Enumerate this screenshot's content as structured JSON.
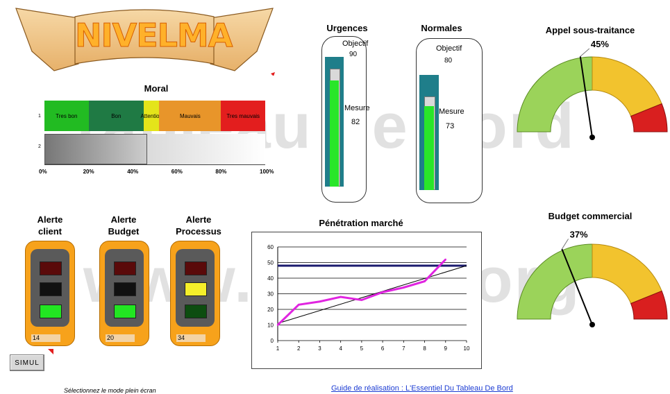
{
  "banner": {
    "text": "NIVELMA"
  },
  "watermarks": {
    "line1": "Tableau de bord",
    "line2": "www.piloter.org"
  },
  "moral": {
    "title": "Moral",
    "row_labels": [
      "1",
      "2"
    ],
    "segments": [
      {
        "label": "Tres bon",
        "start": 0,
        "end": 20,
        "color": "#22bb22"
      },
      {
        "label": "Bon",
        "start": 20,
        "end": 45,
        "color": "#1f7a44"
      },
      {
        "label": "Attention",
        "start": 45,
        "end": 52,
        "color": "#e4e41a"
      },
      {
        "label": "Mauvais",
        "start": 52,
        "end": 80,
        "color": "#e8952a"
      },
      {
        "label": "Tres mauvais",
        "start": 80,
        "end": 100,
        "color": "#e31e1e"
      }
    ],
    "value": 46,
    "ticks": [
      "0%",
      "20%",
      "40%",
      "60%",
      "80%",
      "100%"
    ]
  },
  "thermometers": [
    {
      "title": "Urgences",
      "objectif_label": "Objectif",
      "objectif": 90,
      "mesure_label": "Mesure",
      "mesure": 82
    },
    {
      "title": "Normales",
      "objectif_label": "Objectif",
      "objectif": 80,
      "mesure_label": "Mesure",
      "mesure": 73
    }
  ],
  "gauges": [
    {
      "title": "Appel sous-traitance",
      "value_label": "45%",
      "value": 45
    },
    {
      "title": "Budget commercial",
      "value_label": "37%",
      "value": 37
    }
  ],
  "alerts": [
    {
      "title_line1": "Alerte",
      "title_line2": "client",
      "value": "14",
      "active": "green"
    },
    {
      "title_line1": "Alerte",
      "title_line2": "Budget",
      "value": "20",
      "active": "green"
    },
    {
      "title_line1": "Alerte",
      "title_line2": "Processus",
      "value": "34",
      "active": "yellow"
    }
  ],
  "penetration": {
    "chart_data": {
      "type": "line",
      "title": "Pénétration marché",
      "x": [
        1,
        2,
        3,
        4,
        5,
        6,
        7,
        8,
        9
      ],
      "series": [
        {
          "values": [
            10,
            23,
            25,
            28,
            26,
            31,
            34,
            38,
            52
          ],
          "color": "#e025e0"
        }
      ],
      "trend": [
        [
          1,
          11
        ],
        [
          10,
          48
        ]
      ],
      "target_line": 48,
      "xlim": [
        1,
        10
      ],
      "ylim": [
        0,
        60
      ],
      "xticks": [
        "1",
        "2",
        "3",
        "4",
        "5",
        "6",
        "7",
        "8",
        "9",
        "10"
      ],
      "yticks": [
        "0",
        "10",
        "20",
        "30",
        "40",
        "50",
        "60"
      ],
      "grid": true
    }
  },
  "simul_button": {
    "label": "SIMUL"
  },
  "footer": {
    "note": "Sélectionnez le mode plein écran",
    "link": "Guide de réalisation : L'Essentiel Du Tableau De Bord"
  }
}
